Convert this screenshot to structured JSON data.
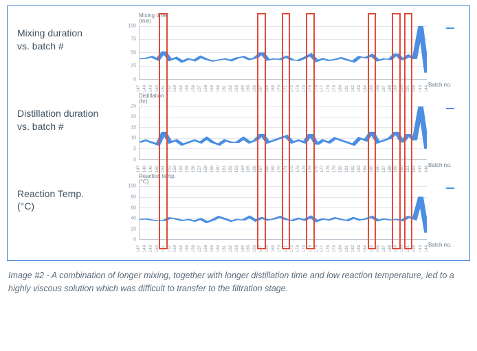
{
  "colors": {
    "border": "#3b7dd8",
    "line": "#4a8fe2",
    "grid": "#e2e7eb",
    "axis": "#b9c3cc",
    "text": "#5a6b7a",
    "band_border": "#e24a3b"
  },
  "x": {
    "label": "Batch no.",
    "values": [
      147,
      148,
      149,
      150,
      151,
      152,
      153,
      154,
      155,
      156,
      157,
      158,
      159,
      160,
      161,
      162,
      163,
      164,
      165,
      166,
      167,
      168,
      169,
      170,
      171,
      172,
      173,
      174,
      175,
      176,
      177,
      178,
      179,
      180,
      181,
      182,
      183,
      184,
      185,
      186,
      187,
      188,
      189,
      190,
      191,
      192,
      143,
      144
    ]
  },
  "bands": {
    "indices": [
      4,
      20,
      24,
      28,
      38,
      42,
      44
    ],
    "width_batches": 1.4
  },
  "panels": [
    {
      "label_lines": [
        "Mixing duration",
        "vs. batch #"
      ],
      "title_lines": [
        "Mixing time",
        "(min)"
      ],
      "ylim": [
        0,
        100
      ],
      "yticks": [
        0,
        25,
        50,
        75,
        100
      ],
      "data": [
        38,
        39,
        42,
        37,
        52,
        36,
        40,
        33,
        38,
        35,
        42,
        37,
        34,
        36,
        38,
        35,
        40,
        42,
        37,
        40,
        50,
        36,
        38,
        37,
        42,
        36,
        35,
        40,
        46,
        34,
        38,
        35,
        37,
        40,
        36,
        33,
        42,
        40,
        45,
        35,
        38,
        37,
        48,
        36,
        44,
        38,
        100,
        12
      ]
    },
    {
      "label_lines": [
        "Distillation duration",
        "vs. batch #"
      ],
      "title_lines": [
        "Distillation",
        "(hr)"
      ],
      "ylim": [
        0,
        25
      ],
      "yticks": [
        0,
        5,
        10,
        15,
        20,
        25
      ],
      "data": [
        8,
        9,
        8,
        7,
        13,
        8,
        9,
        7,
        8,
        9,
        8,
        10,
        8,
        7,
        9,
        8,
        8,
        10,
        8,
        9,
        12,
        8,
        9,
        10,
        11,
        8,
        9,
        8,
        12,
        7,
        9,
        8,
        10,
        9,
        8,
        7,
        10,
        9,
        13,
        8,
        9,
        10,
        13,
        8,
        12,
        9,
        25,
        5
      ]
    },
    {
      "label_lines": [
        "Reaction Temp.",
        "(°C)"
      ],
      "title_lines": [
        "Reaction temp.",
        "(°C)"
      ],
      "ylim": [
        0,
        100
      ],
      "yticks": [
        0,
        20,
        40,
        60,
        80,
        100
      ],
      "data": [
        37,
        38,
        36,
        35,
        35,
        40,
        38,
        35,
        37,
        34,
        38,
        32,
        36,
        42,
        38,
        34,
        37,
        36,
        42,
        35,
        40,
        36,
        38,
        42,
        37,
        35,
        39,
        36,
        42,
        34,
        38,
        36,
        40,
        37,
        35,
        40,
        36,
        38,
        42,
        35,
        38,
        36,
        37,
        35,
        42,
        38,
        80,
        12
      ]
    }
  ],
  "caption": "Image #2 - A combination of longer mixing, together with longer distillation time and low reaction temperature, led to a highly viscous solution which was difficult to transfer to the filtration stage."
}
